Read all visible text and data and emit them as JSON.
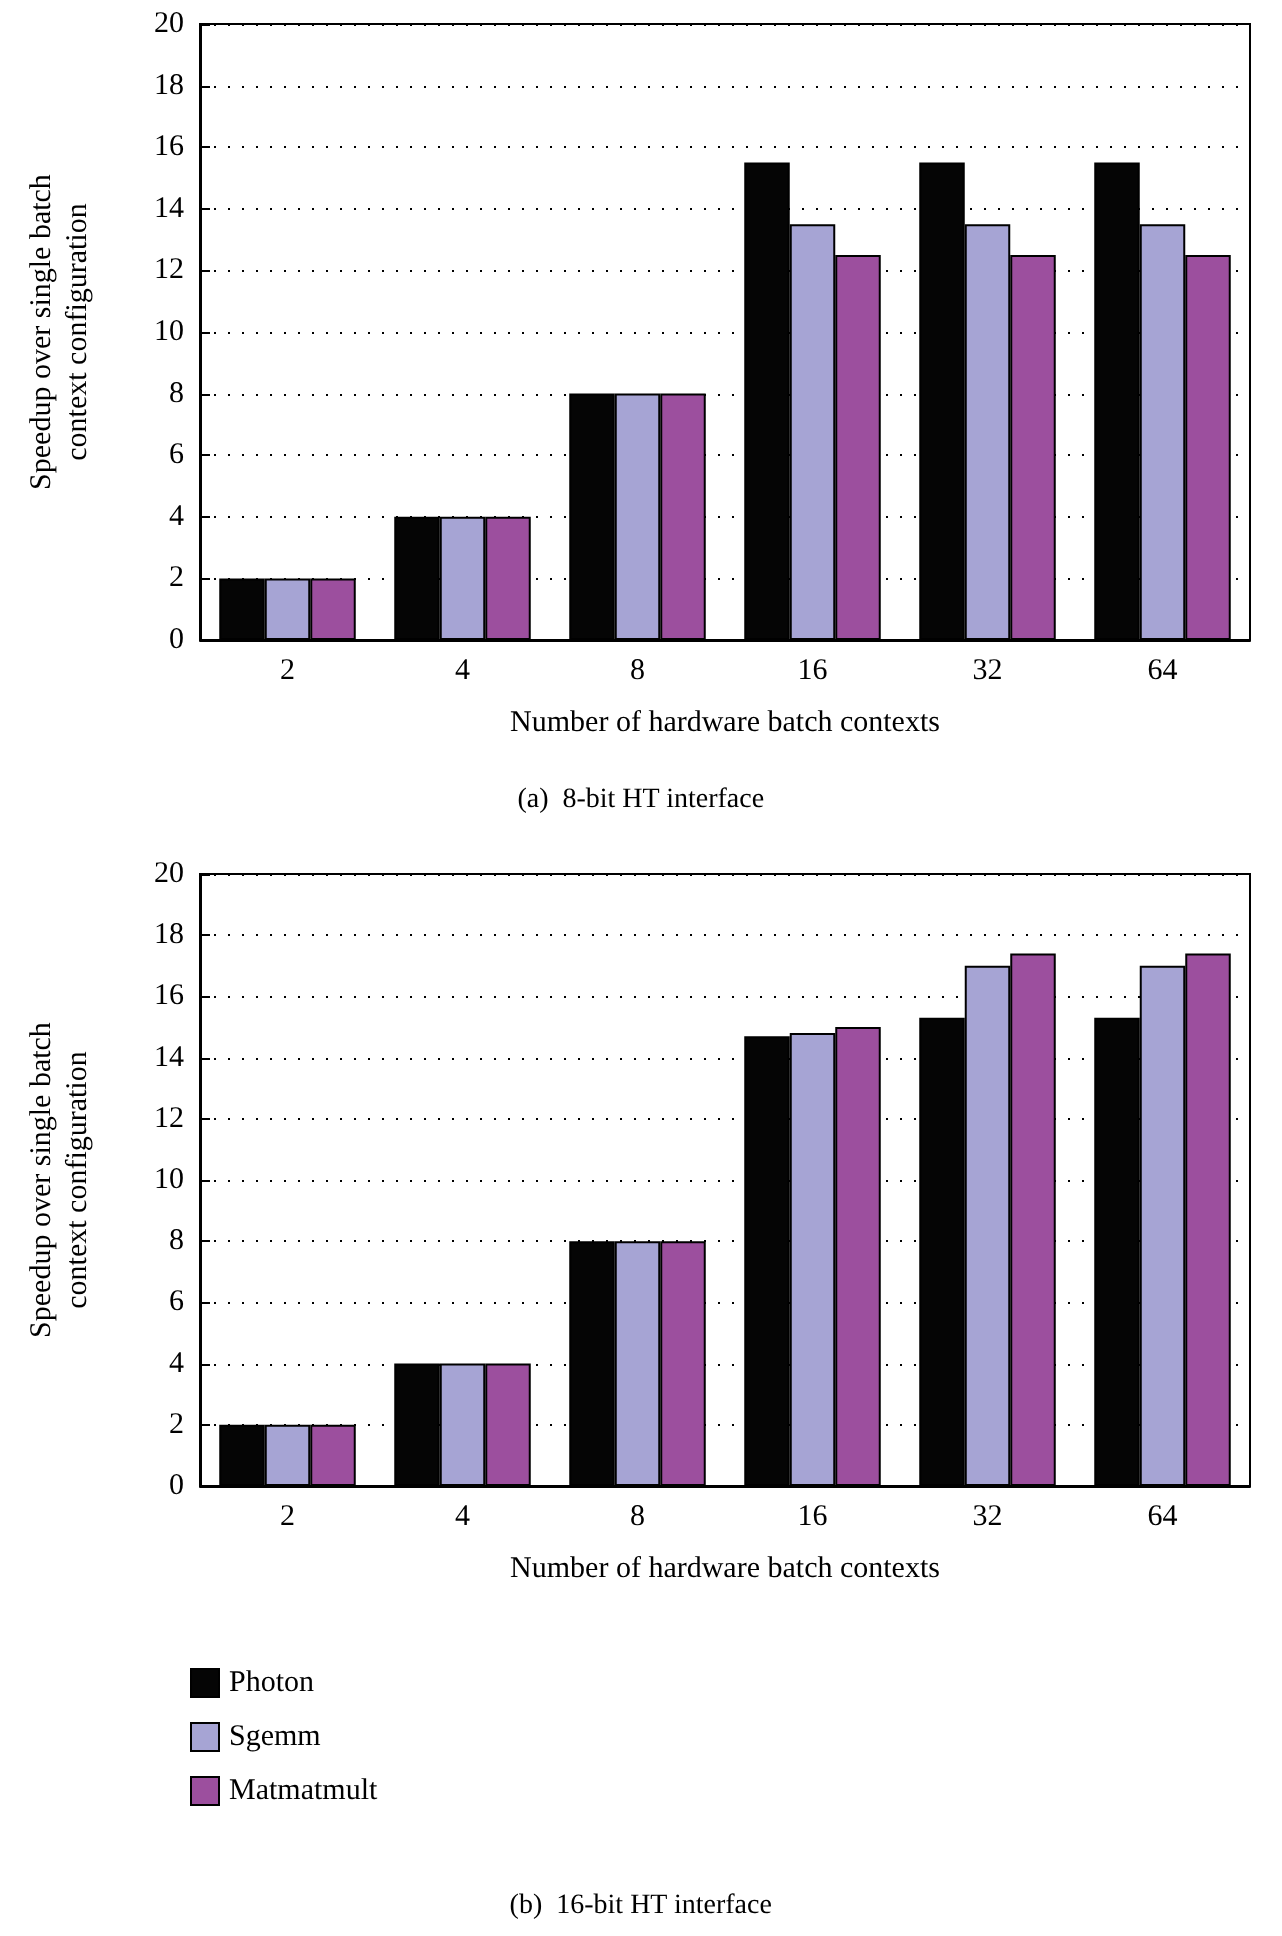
{
  "chart_data": [
    {
      "type": "bar",
      "xlabel": "Number of hardware batch contexts",
      "ylabel": "Speedup over single batch context configuration",
      "annotations": [
        "(a)  8-bit HT interface"
      ],
      "categories": [
        "2",
        "4",
        "8",
        "16",
        "32",
        "64"
      ],
      "series": [
        {
          "color": "#050505",
          "values": [
            2,
            4,
            8,
            15.5,
            15.5,
            15.5
          ]
        },
        {
          "color": "#a6a4d4",
          "values": [
            2,
            4,
            8,
            13.5,
            13.5,
            13.5
          ]
        },
        {
          "color": "#9c4f9e",
          "values": [
            2,
            4,
            8,
            12.5,
            12.5,
            12.5
          ]
        }
      ],
      "ylim": [
        0,
        20
      ],
      "yticks": [
        0,
        2,
        4,
        6,
        8,
        10,
        12,
        14,
        16,
        18,
        20
      ],
      "grid": "y",
      "legend": false
    },
    {
      "type": "bar",
      "xlabel": "Number of hardware batch contexts",
      "ylabel": "Speedup over single batch context configuration",
      "annotations": [
        "(b)  16-bit HT interface"
      ],
      "categories": [
        "2",
        "4",
        "8",
        "16",
        "32",
        "64"
      ],
      "series": [
        {
          "name": "Photon",
          "color": "#050505",
          "values": [
            2,
            4,
            8,
            14.7,
            15.3,
            15.3
          ]
        },
        {
          "name": "Sgemm",
          "color": "#a6a4d4",
          "values": [
            2,
            4,
            8,
            14.8,
            17,
            17
          ]
        },
        {
          "name": "Matmatmult",
          "color": "#9c4f9e",
          "values": [
            2,
            4,
            8,
            15,
            17.4,
            17.4
          ]
        }
      ],
      "ylim": [
        0,
        20
      ],
      "yticks": [
        0,
        2,
        4,
        6,
        8,
        10,
        12,
        14,
        16,
        18,
        20
      ],
      "grid": "y",
      "legend": "bottom"
    }
  ]
}
